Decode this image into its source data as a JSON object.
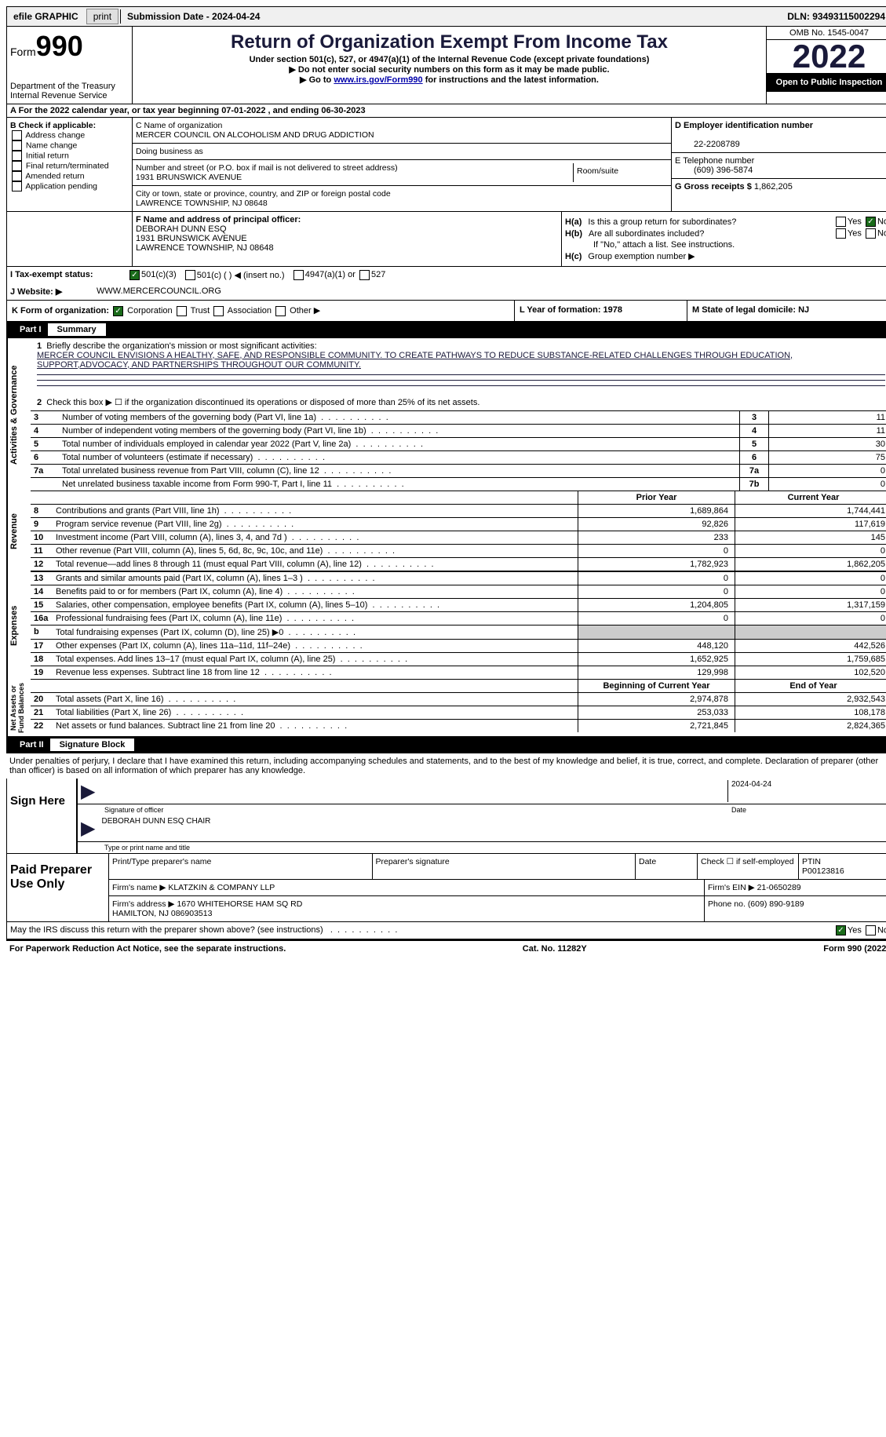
{
  "top_bar": {
    "efile": "efile GRAPHIC",
    "print": "print",
    "submission": "Submission Date - 2024-04-24",
    "dln": "DLN: 93493115002294"
  },
  "header": {
    "form_prefix": "Form",
    "form_num": "990",
    "title": "Return of Organization Exempt From Income Tax",
    "subtitle": "Under section 501(c), 527, or 4947(a)(1) of the Internal Revenue Code (except private foundations)",
    "note1": "▶ Do not enter social security numbers on this form as it may be made public.",
    "note2_pre": "▶ Go to ",
    "note2_link": "www.irs.gov/Form990",
    "note2_post": " for instructions and the latest information.",
    "dept": "Department of the Treasury\nInternal Revenue Service",
    "omb": "OMB No. 1545-0047",
    "year": "2022",
    "open": "Open to Public Inspection"
  },
  "row_a": "A For the 2022 calendar year, or tax year beginning 07-01-2022    , and ending 06-30-2023",
  "section_b": {
    "b_label": "B Check if applicable:",
    "checks": [
      "Address change",
      "Name change",
      "Initial return",
      "Final return/terminated",
      "Amended return",
      "Application pending"
    ],
    "c_name_label": "C Name of organization",
    "c_name": "MERCER COUNCIL ON ALCOHOLISM AND DRUG ADDICTION",
    "dba_label": "Doing business as",
    "street_label": "Number and street (or P.O. box if mail is not delivered to street address)",
    "street": "1931 BRUNSWICK AVENUE",
    "room_label": "Room/suite",
    "city_label": "City or town, state or province, country, and ZIP or foreign postal code",
    "city": "LAWRENCE TOWNSHIP, NJ  08648",
    "d_label": "D Employer identification number",
    "d_val": "22-2208789",
    "e_label": "E Telephone number",
    "e_val": "(609) 396-5874",
    "g_label": "G Gross receipts $",
    "g_val": "1,862,205"
  },
  "section_fh": {
    "f_label": "F Name and address of principal officer:",
    "f_name": "DEBORAH DUNN ESQ",
    "f_addr1": "1931 BRUNSWICK AVENUE",
    "f_addr2": "LAWRENCE TOWNSHIP, NJ  08648",
    "ha": "Is this a group return for subordinates?",
    "hb": "Are all subordinates included?",
    "hb_note": "If \"No,\" attach a list. See instructions.",
    "hc": "Group exemption number ▶",
    "h_label_a": "H(a)",
    "h_label_b": "H(b)",
    "h_label_c": "H(c)"
  },
  "row_i": {
    "i_label": "I   Tax-exempt status:",
    "opts": [
      "501(c)(3)",
      "501(c) (  ) ◀ (insert no.)",
      "4947(a)(1) or",
      "527"
    ]
  },
  "row_j": {
    "j_label": "J   Website: ▶",
    "j_val": "WWW.MERCERCOUNCIL.ORG"
  },
  "row_k": {
    "k_label": "K Form of organization:",
    "opts": [
      "Corporation",
      "Trust",
      "Association",
      "Other ▶"
    ],
    "l": "L Year of formation: 1978",
    "m": "M State of legal domicile: NJ"
  },
  "part1": {
    "num": "Part I",
    "title": "Summary"
  },
  "mission": {
    "label": "Briefly describe the organization's mission or most significant activities:",
    "text": "MERCER COUNCIL ENVISIONS A HEALTHY, SAFE, AND RESPONSIBLE COMMUNITY. TO CREATE PATHWAYS TO REDUCE SUBSTANCE-RELATED CHALLENGES THROUGH EDUCATION, SUPPORT,ADVOCACY, AND PARTNERSHIPS THROUGHOUT OUR COMMUNITY."
  },
  "line2": "Check this box ▶ ☐  if the organization discontinued its operations or disposed of more than 25% of its net assets.",
  "gov_rows": [
    {
      "n": "3",
      "desc": "Number of voting members of the governing body (Part VI, line 1a)",
      "box": "3",
      "val": "11"
    },
    {
      "n": "4",
      "desc": "Number of independent voting members of the governing body (Part VI, line 1b)",
      "box": "4",
      "val": "11"
    },
    {
      "n": "5",
      "desc": "Total number of individuals employed in calendar year 2022 (Part V, line 2a)",
      "box": "5",
      "val": "30"
    },
    {
      "n": "6",
      "desc": "Total number of volunteers (estimate if necessary)",
      "box": "6",
      "val": "75"
    },
    {
      "n": "7a",
      "desc": "Total unrelated business revenue from Part VIII, column (C), line 12",
      "box": "7a",
      "val": "0"
    },
    {
      "n": "",
      "desc": "Net unrelated business taxable income from Form 990-T, Part I, line 11",
      "box": "7b",
      "val": "0"
    }
  ],
  "yr_headers": {
    "py": "Prior Year",
    "cy": "Current Year"
  },
  "revenue_rows": [
    {
      "n": "8",
      "desc": "Contributions and grants (Part VIII, line 1h)",
      "py": "1,689,864",
      "cy": "1,744,441"
    },
    {
      "n": "9",
      "desc": "Program service revenue (Part VIII, line 2g)",
      "py": "92,826",
      "cy": "117,619"
    },
    {
      "n": "10",
      "desc": "Investment income (Part VIII, column (A), lines 3, 4, and 7d )",
      "py": "233",
      "cy": "145"
    },
    {
      "n": "11",
      "desc": "Other revenue (Part VIII, column (A), lines 5, 6d, 8c, 9c, 10c, and 11e)",
      "py": "0",
      "cy": "0"
    },
    {
      "n": "12",
      "desc": "Total revenue—add lines 8 through 11 (must equal Part VIII, column (A), line 12)",
      "py": "1,782,923",
      "cy": "1,862,205"
    }
  ],
  "expense_rows": [
    {
      "n": "13",
      "desc": "Grants and similar amounts paid (Part IX, column (A), lines 1–3 )",
      "py": "0",
      "cy": "0"
    },
    {
      "n": "14",
      "desc": "Benefits paid to or for members (Part IX, column (A), line 4)",
      "py": "0",
      "cy": "0"
    },
    {
      "n": "15",
      "desc": "Salaries, other compensation, employee benefits (Part IX, column (A), lines 5–10)",
      "py": "1,204,805",
      "cy": "1,317,159"
    },
    {
      "n": "16a",
      "desc": "Professional fundraising fees (Part IX, column (A), line 11e)",
      "py": "0",
      "cy": "0"
    },
    {
      "n": "b",
      "desc": "Total fundraising expenses (Part IX, column (D), line 25) ▶0",
      "py": "",
      "cy": "",
      "shaded": true
    },
    {
      "n": "17",
      "desc": "Other expenses (Part IX, column (A), lines 11a–11d, 11f–24e)",
      "py": "448,120",
      "cy": "442,526"
    },
    {
      "n": "18",
      "desc": "Total expenses. Add lines 13–17 (must equal Part IX, column (A), line 25)",
      "py": "1,652,925",
      "cy": "1,759,685"
    },
    {
      "n": "19",
      "desc": "Revenue less expenses. Subtract line 18 from line 12",
      "py": "129,998",
      "cy": "102,520"
    }
  ],
  "na_headers": {
    "py": "Beginning of Current Year",
    "cy": "End of Year"
  },
  "na_rows": [
    {
      "n": "20",
      "desc": "Total assets (Part X, line 16)",
      "py": "2,974,878",
      "cy": "2,932,543"
    },
    {
      "n": "21",
      "desc": "Total liabilities (Part X, line 26)",
      "py": "253,033",
      "cy": "108,178"
    },
    {
      "n": "22",
      "desc": "Net assets or fund balances. Subtract line 21 from line 20",
      "py": "2,721,845",
      "cy": "2,824,365"
    }
  ],
  "part2": {
    "num": "Part II",
    "title": "Signature Block"
  },
  "sig_text": "Under penalties of perjury, I declare that I have examined this return, including accompanying schedules and statements, and to the best of my knowledge and belief, it is true, correct, and complete. Declaration of preparer (other than officer) is based on all information of which preparer has any knowledge.",
  "sign": {
    "label": "Sign Here",
    "sig_of": "Signature of officer",
    "date": "2024-04-24",
    "name": "DEBORAH DUNN ESQ  CHAIR",
    "name_label": "Type or print name and title"
  },
  "prep": {
    "label": "Paid Preparer Use Only",
    "h1": "Print/Type preparer's name",
    "h2": "Preparer's signature",
    "h3": "Date",
    "h4": "Check ☐ if self-employed",
    "h5": "PTIN",
    "ptin": "P00123816",
    "firm_label": "Firm's name    ▶",
    "firm": "KLATZKIN & COMPANY LLP",
    "ein_label": "Firm's EIN ▶",
    "ein": "21-0650289",
    "addr_label": "Firm's address ▶",
    "addr": "1670 WHITEHORSE HAM SQ RD\nHAMILTON, NJ  086903513",
    "phone_label": "Phone no.",
    "phone": "(609) 890-9189"
  },
  "bottom": "May the IRS discuss this return with the preparer shown above? (see instructions)",
  "footer": {
    "left": "For Paperwork Reduction Act Notice, see the separate instructions.",
    "mid": "Cat. No. 11282Y",
    "right": "Form 990 (2022)"
  }
}
